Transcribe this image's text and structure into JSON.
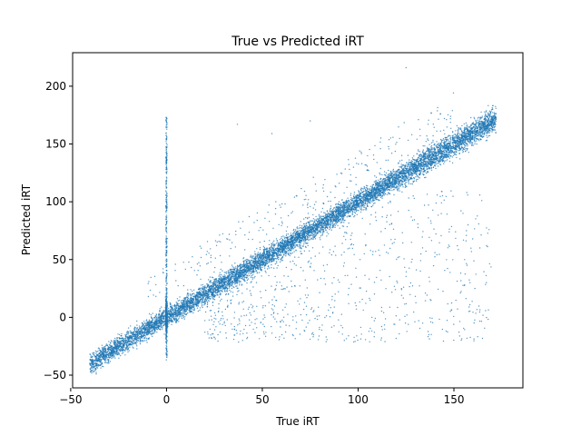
{
  "chart_data": {
    "type": "scatter",
    "title": "True vs Predicted iRT",
    "xlabel": "True iRT",
    "ylabel": "Predicted iRT",
    "xlim": [
      -49,
      186
    ],
    "ylim": [
      -61,
      229
    ],
    "xticks": [
      -50,
      0,
      50,
      100,
      150
    ],
    "yticks": [
      -50,
      0,
      50,
      100,
      150,
      200
    ],
    "grid": false,
    "marker_color": "#1f77b4",
    "description_of_shape": [],
    "clusters": {
      "diagonal_main": {
        "x_range": [
          -40,
          172
        ],
        "relation": "y≈x",
        "spread": 6
      },
      "vertical_band_at_x0": {
        "x": 0,
        "y_range": [
          -38,
          173
        ]
      },
      "below_diagonal_scatter": {
        "x_range": [
          20,
          170
        ],
        "y_range": [
          -22,
          110
        ]
      }
    },
    "outliers": [
      {
        "x": 125,
        "y": 216
      },
      {
        "x": 37,
        "y": 167
      },
      {
        "x": 75,
        "y": 170
      },
      {
        "x": 55,
        "y": 159
      },
      {
        "x": 145,
        "y": 172
      },
      {
        "x": -38,
        "y": -47
      }
    ]
  }
}
